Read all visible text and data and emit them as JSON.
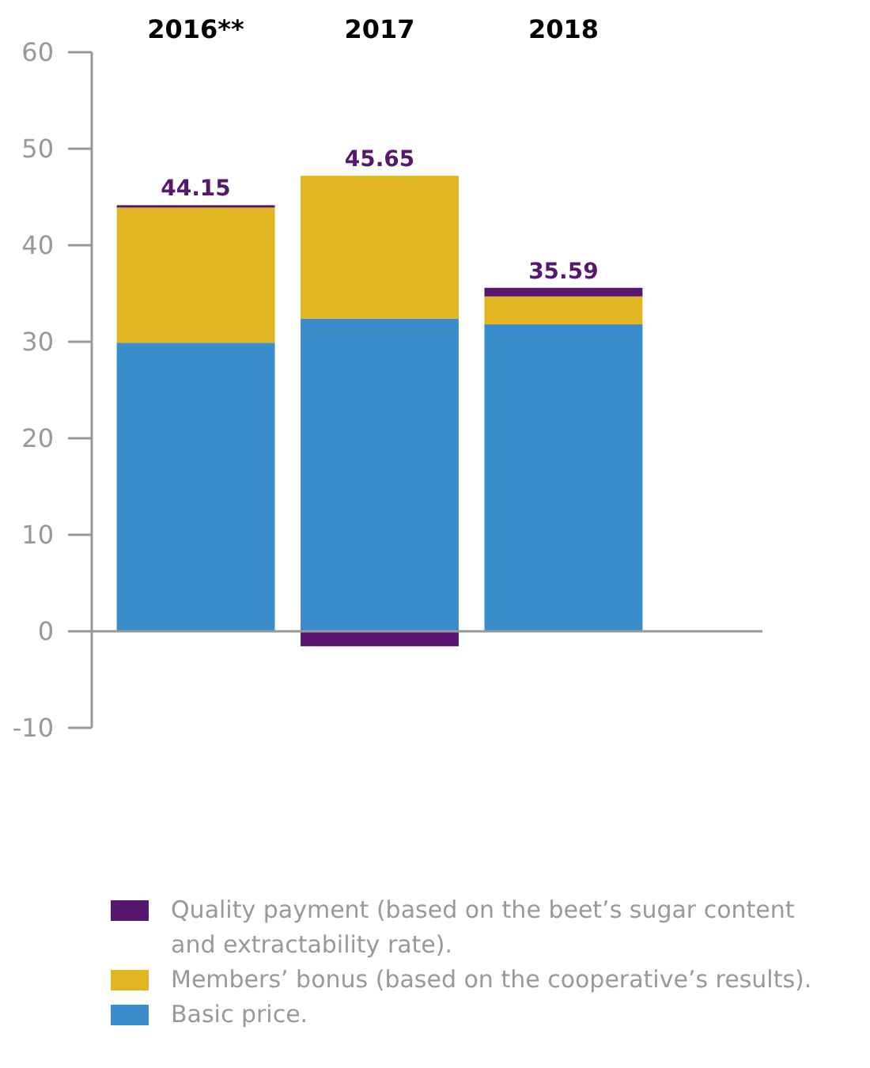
{
  "chart_data": {
    "type": "bar",
    "stacked": true,
    "categories": [
      "2016**",
      "2017",
      "2018"
    ],
    "series": [
      {
        "name": "Basic price.",
        "color": "#3a8dca",
        "values": [
          29.9,
          32.4,
          31.8
        ]
      },
      {
        "name": "Members’ bonus (based on the cooperative’s results).",
        "color": "#e2b620",
        "values": [
          14.0,
          14.8,
          2.89
        ]
      },
      {
        "name": "Quality payment (based on the beet’s sugar content and extractability rate).",
        "color": "#57176f",
        "values": [
          0.25,
          -1.55,
          0.9
        ]
      }
    ],
    "totals": [
      "44.15",
      "45.65",
      "35.59"
    ],
    "ylim": [
      -10,
      60
    ],
    "yticks": [
      -10,
      0,
      10,
      20,
      30,
      40,
      50,
      60
    ],
    "legend": "bottom"
  }
}
